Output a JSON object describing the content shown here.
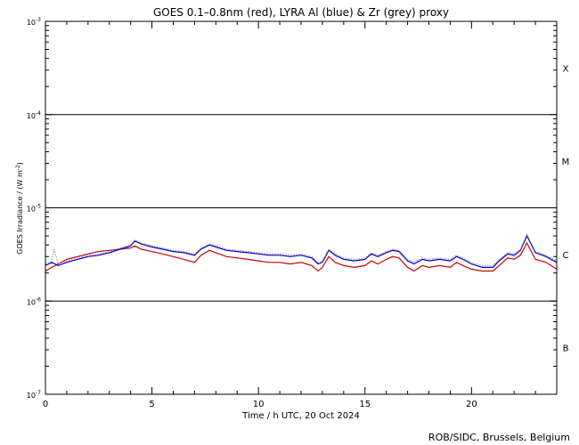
{
  "chart_data": {
    "type": "line",
    "title": "GOES 0.1–0.8nm (red), LYRA Al (blue) & Zr (grey) proxy",
    "xlabel": "Time / h UTC, 20 Oct 2024",
    "ylabel_main": "GOES Irradiance / (W m",
    "ylabel_sup": "-2",
    "ylabel_end": ")",
    "xlim": [
      0,
      24
    ],
    "ylim": [
      1e-07,
      0.001
    ],
    "yscale": "log",
    "x_ticks": [
      {
        "value": 0,
        "label": "0"
      },
      {
        "value": 5,
        "label": "5"
      },
      {
        "value": 10,
        "label": "10"
      },
      {
        "value": 15,
        "label": "15"
      },
      {
        "value": 20,
        "label": "20"
      }
    ],
    "y_ticks": [
      {
        "value": 0.001,
        "base": "10",
        "exp": "-3"
      },
      {
        "value": 0.0001,
        "base": "10",
        "exp": "-4"
      },
      {
        "value": 1e-05,
        "base": "10",
        "exp": "-5"
      },
      {
        "value": 1e-06,
        "base": "10",
        "exp": "-6"
      },
      {
        "value": 1e-07,
        "base": "10",
        "exp": "-7"
      }
    ],
    "class_lines": [
      0.0001,
      1e-05,
      1e-06
    ],
    "class_labels": [
      {
        "label": "X",
        "value": 0.000316
      },
      {
        "label": "M",
        "value": 3.16e-05
      },
      {
        "label": "C",
        "value": 3.16e-06
      },
      {
        "label": "B",
        "value": 3.16e-07
      }
    ],
    "series": [
      {
        "color": "#cc0000",
        "x": [
          0,
          0.3,
          0.6,
          1,
          1.5,
          2,
          2.5,
          3,
          3.5,
          4,
          4.2,
          4.5,
          5,
          5.5,
          6,
          6.5,
          7,
          7.3,
          7.7,
          8,
          8.5,
          9,
          9.5,
          10,
          10.5,
          11,
          11.5,
          12,
          12.5,
          12.8,
          13,
          13.3,
          13.6,
          14,
          14.5,
          15,
          15.3,
          15.6,
          16,
          16.3,
          16.6,
          17,
          17.3,
          17.7,
          18,
          18.5,
          19,
          19.3,
          19.6,
          20,
          20.5,
          21,
          21.3,
          21.7,
          22,
          22.3,
          22.6,
          23,
          23.5,
          24
        ],
        "values": [
          2.1e-06,
          2.3e-06,
          2.5e-06,
          2.8e-06,
          3e-06,
          3.2e-06,
          3.4e-06,
          3.5e-06,
          3.6e-06,
          3.7e-06,
          3.9e-06,
          3.6e-06,
          3.4e-06,
          3.2e-06,
          3e-06,
          2.8e-06,
          2.6e-06,
          3.1e-06,
          3.5e-06,
          3.3e-06,
          3e-06,
          2.9e-06,
          2.8e-06,
          2.7e-06,
          2.6e-06,
          2.6e-06,
          2.5e-06,
          2.6e-06,
          2.4e-06,
          2.1e-06,
          2.3e-06,
          3e-06,
          2.6e-06,
          2.4e-06,
          2.3e-06,
          2.4e-06,
          2.7e-06,
          2.5e-06,
          2.8e-06,
          3e-06,
          2.9e-06,
          2.3e-06,
          2.1e-06,
          2.4e-06,
          2.3e-06,
          2.4e-06,
          2.3e-06,
          2.6e-06,
          2.4e-06,
          2.2e-06,
          2.1e-06,
          2.1e-06,
          2.4e-06,
          2.9e-06,
          2.8e-06,
          3.1e-06,
          4.2e-06,
          2.8e-06,
          2.6e-06,
          2.2e-06
        ]
      },
      {
        "color": "#0000cc",
        "x": [
          0,
          0.3,
          0.6,
          1,
          1.5,
          2,
          2.5,
          3,
          3.5,
          4,
          4.2,
          4.5,
          5,
          5.5,
          6,
          6.5,
          7,
          7.3,
          7.7,
          8,
          8.5,
          9,
          9.5,
          10,
          10.5,
          11,
          11.5,
          12,
          12.5,
          12.8,
          13,
          13.3,
          13.6,
          14,
          14.5,
          15,
          15.3,
          15.6,
          16,
          16.3,
          16.6,
          17,
          17.3,
          17.7,
          18,
          18.5,
          19,
          19.3,
          19.6,
          20,
          20.5,
          21,
          21.3,
          21.7,
          22,
          22.3,
          22.6,
          23,
          23.5,
          24
        ],
        "values": [
          2.4e-06,
          2.6e-06,
          2.4e-06,
          2.6e-06,
          2.8e-06,
          3e-06,
          3.1e-06,
          3.3e-06,
          3.6e-06,
          3.9e-06,
          4.4e-06,
          4.1e-06,
          3.8e-06,
          3.6e-06,
          3.4e-06,
          3.3e-06,
          3.1e-06,
          3.6e-06,
          4e-06,
          3.8e-06,
          3.5e-06,
          3.4e-06,
          3.3e-06,
          3.2e-06,
          3.1e-06,
          3.1e-06,
          3e-06,
          3.1e-06,
          2.9e-06,
          2.5e-06,
          2.6e-06,
          3.5e-06,
          3.1e-06,
          2.8e-06,
          2.7e-06,
          2.8e-06,
          3.2e-06,
          3e-06,
          3.3e-06,
          3.5e-06,
          3.4e-06,
          2.7e-06,
          2.5e-06,
          2.8e-06,
          2.7e-06,
          2.8e-06,
          2.7e-06,
          3e-06,
          2.8e-06,
          2.5e-06,
          2.3e-06,
          2.3e-06,
          2.7e-06,
          3.2e-06,
          3.1e-06,
          3.5e-06,
          5e-06,
          3.3e-06,
          3e-06,
          2.6e-06
        ]
      },
      {
        "color": "#888888",
        "x": [
          0,
          0.3,
          0.4,
          0.6,
          1,
          1.5,
          2,
          2.5,
          3,
          3.5,
          4,
          4.2,
          4.5,
          5,
          5.5,
          6,
          6.5,
          7,
          7.3,
          7.7,
          8,
          8.5,
          9,
          9.5,
          10,
          10.5,
          11,
          11.5,
          12,
          12.5,
          12.8,
          13,
          13.3,
          13.6,
          14,
          14.5,
          15,
          15.3,
          15.6,
          16,
          16.3,
          16.6,
          17,
          17.3,
          17.7,
          18,
          18.5,
          19,
          19.3,
          19.6,
          20,
          20.5,
          21,
          21.3,
          21.7,
          22,
          22.3,
          22.6,
          23,
          23.5,
          24
        ],
        "values": [
          2.5e-06,
          2.7e-06,
          3.6e-06,
          2.5e-06,
          2.7e-06,
          2.9e-06,
          3.1e-06,
          3.2e-06,
          3.4e-06,
          3.7e-06,
          4e-06,
          4.5e-06,
          4.2e-06,
          3.9e-06,
          3.7e-06,
          3.5e-06,
          3.4e-06,
          3.2e-06,
          3.7e-06,
          4.1e-06,
          3.9e-06,
          3.6e-06,
          3.5e-06,
          3.4e-06,
          3.3e-06,
          3.2e-06,
          3.2e-06,
          3.1e-06,
          3.2e-06,
          3e-06,
          2.6e-06,
          2.7e-06,
          3.6e-06,
          3.2e-06,
          2.9e-06,
          2.8e-06,
          2.9e-06,
          3.3e-06,
          3.1e-06,
          3.4e-06,
          3.6e-06,
          3.5e-06,
          2.8e-06,
          2.6e-06,
          2.9e-06,
          2.8e-06,
          2.9e-06,
          2.8e-06,
          3.1e-06,
          2.9e-06,
          2.6e-06,
          2.4e-06,
          2.4e-06,
          2.8e-06,
          3.3e-06,
          3.2e-06,
          3.6e-06,
          5.2e-06,
          3.4e-06,
          3.1e-06,
          2.7e-06
        ]
      }
    ]
  },
  "footer": {
    "credit": "ROB/SIDC, Brussels, Belgium"
  }
}
